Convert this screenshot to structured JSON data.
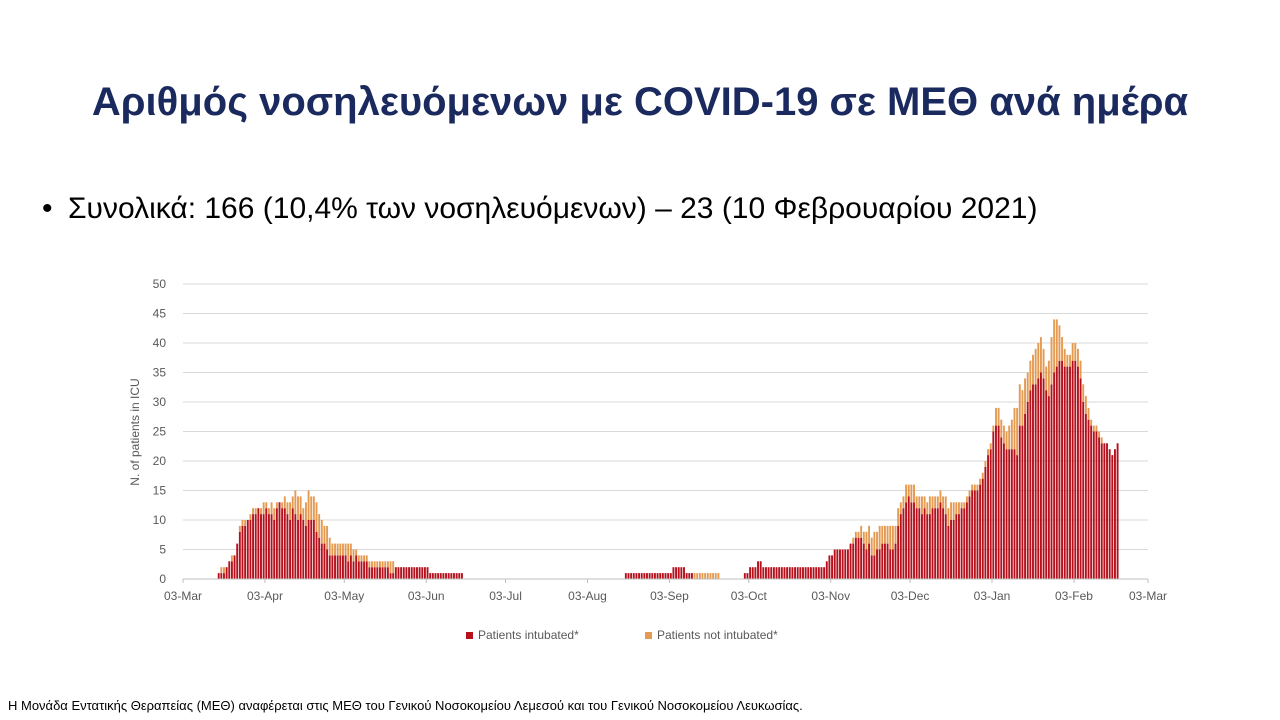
{
  "slide": {
    "title": "Αριθμός νοσηλευόμενων με COVID-19 σε ΜΕΘ ανά ημέρα",
    "bullet": "Συνολικά: 166 (10,4% των νοσηλευόμενων) – 23 (10 Φεβρουαρίου 2021)",
    "footnote": "Η Μονάδα Εντατικής Θεραπείας (ΜΕΘ) αναφέρεται στις ΜΕΘ του Γενικού Νοσοκομείου  Λεμεσού και του Γενικού Νοσοκομείου  Λευκωσίας."
  },
  "chart_data": {
    "type": "bar",
    "stacked": true,
    "title": "",
    "xlabel": "",
    "ylabel": "N. of patients in ICU",
    "ylim": [
      0,
      50
    ],
    "yticks": [
      0,
      5,
      10,
      15,
      20,
      25,
      30,
      35,
      40,
      45,
      50
    ],
    "grid": true,
    "legend_position": "bottom",
    "x_range": [
      "2020-03-03",
      "2021-03-03"
    ],
    "x_tick_labels": [
      "03-Mar",
      "03-Apr",
      "03-May",
      "03-Jun",
      "03-Jul",
      "03-Aug",
      "03-Sep",
      "03-Oct",
      "03-Nov",
      "03-Dec",
      "03-Jan",
      "03-Feb",
      "03-Mar"
    ],
    "x_tick_dates": [
      "2020-03-03",
      "2020-04-03",
      "2020-05-03",
      "2020-06-03",
      "2020-07-03",
      "2020-08-03",
      "2020-09-03",
      "2020-10-03",
      "2020-11-03",
      "2020-12-03",
      "2021-01-03",
      "2021-02-03",
      "2021-03-03"
    ],
    "series_colors": [
      "#b5101c",
      "#e59a52"
    ],
    "series": [
      {
        "name": "Patients intubated*",
        "segments": [
          {
            "start": "2020-03-16",
            "values": [
              1,
              1,
              1,
              2,
              3,
              3,
              4,
              6,
              8,
              9,
              9,
              10,
              10,
              11,
              11,
              12,
              11,
              11,
              12,
              11,
              11,
              10,
              12,
              13,
              12,
              12,
              11,
              10,
              12,
              11,
              10,
              11,
              10,
              9,
              10,
              10,
              10,
              8,
              7,
              6,
              6,
              5,
              4,
              4,
              4,
              4,
              4,
              4,
              4,
              3,
              4,
              3,
              4,
              3,
              3,
              3,
              3,
              2,
              2,
              2,
              2,
              2,
              2,
              2,
              2,
              1,
              1,
              2,
              2,
              2,
              2,
              2,
              2,
              2,
              2,
              2,
              2,
              2,
              2,
              2,
              1,
              1,
              1,
              1,
              1,
              1,
              1,
              1,
              1,
              1,
              1,
              1,
              1
            ]
          },
          {
            "start": "2020-08-17",
            "values": [
              1,
              1,
              1,
              1,
              1,
              1,
              1,
              1,
              1,
              1,
              1,
              1,
              1,
              1,
              1,
              1,
              1,
              1,
              2,
              2,
              2,
              2,
              2,
              1,
              1,
              1,
              0,
              0,
              0,
              0,
              0,
              0,
              0,
              0,
              0,
              0,
              0,
              0,
              0,
              0,
              0,
              0,
              0,
              0,
              0,
              1,
              1,
              2,
              2,
              2,
              3,
              3,
              2,
              2,
              2,
              2,
              2,
              2,
              2,
              2,
              2,
              2,
              2,
              2,
              2,
              2,
              2,
              2,
              2,
              2,
              2,
              2,
              2,
              2,
              2,
              2,
              3,
              4,
              4,
              5,
              5,
              5,
              5,
              5,
              5,
              6,
              6,
              7,
              7,
              7,
              6,
              5,
              6,
              4,
              4,
              5,
              5,
              6,
              6,
              6,
              5,
              5,
              6,
              9,
              11,
              12,
              13,
              14,
              13,
              13,
              12,
              12,
              11,
              12,
              11,
              11,
              12,
              12,
              12,
              13,
              12,
              11,
              9,
              10,
              10,
              11,
              11,
              12,
              12,
              13,
              14,
              15,
              15,
              15,
              16,
              17,
              19,
              21,
              22,
              25,
              26,
              26,
              24,
              23,
              22,
              22,
              22,
              22,
              21,
              26,
              26,
              28,
              30,
              32,
              33,
              33,
              34,
              35,
              34,
              32,
              31,
              33,
              35,
              36,
              37,
              37,
              36,
              36,
              36,
              37,
              37,
              36,
              34,
              30,
              28,
              27,
              26,
              25,
              25,
              24,
              23,
              23,
              23,
              22,
              21,
              22,
              23
            ]
          }
        ]
      },
      {
        "name": "Patients not intubated*",
        "segments": [
          {
            "start": "2020-03-16",
            "values": [
              0,
              1,
              1,
              0,
              0,
              1,
              0,
              0,
              1,
              1,
              1,
              0,
              1,
              1,
              1,
              0,
              1,
              2,
              1,
              1,
              2,
              2,
              1,
              0,
              1,
              2,
              2,
              3,
              2,
              4,
              4,
              3,
              2,
              4,
              5,
              4,
              4,
              5,
              4,
              4,
              3,
              4,
              3,
              2,
              2,
              2,
              2,
              2,
              2,
              3,
              2,
              2,
              1,
              1,
              1,
              1,
              1,
              1,
              1,
              1,
              1,
              1,
              1,
              1,
              1,
              2,
              2,
              0,
              0,
              0,
              0,
              0,
              0,
              0,
              0,
              0,
              0,
              0,
              0,
              0,
              0,
              0,
              0,
              0,
              0,
              0,
              0,
              0,
              0,
              0,
              0,
              0,
              0
            ]
          },
          {
            "start": "2020-08-17",
            "values": [
              0,
              0,
              0,
              0,
              0,
              0,
              0,
              0,
              0,
              0,
              0,
              0,
              0,
              0,
              0,
              0,
              0,
              0,
              0,
              0,
              0,
              0,
              0,
              0,
              0,
              0,
              1,
              1,
              1,
              1,
              1,
              1,
              1,
              1,
              1,
              1,
              0,
              0,
              0,
              0,
              0,
              0,
              0,
              0,
              0,
              0,
              0,
              0,
              0,
              0,
              0,
              0,
              0,
              0,
              0,
              0,
              0,
              0,
              0,
              0,
              0,
              0,
              0,
              0,
              0,
              0,
              0,
              0,
              0,
              0,
              0,
              0,
              0,
              0,
              0,
              0,
              0,
              0,
              0,
              0,
              0,
              0,
              0,
              0,
              0,
              0,
              1,
              1,
              1,
              2,
              2,
              3,
              3,
              3,
              4,
              3,
              4,
              3,
              3,
              3,
              4,
              4,
              3,
              3,
              2,
              2,
              3,
              2,
              3,
              3,
              2,
              2,
              3,
              2,
              2,
              3,
              2,
              2,
              2,
              2,
              2,
              3,
              3,
              3,
              3,
              2,
              2,
              1,
              1,
              1,
              1,
              1,
              1,
              1,
              1,
              1,
              1,
              1,
              1,
              1,
              3,
              3,
              3,
              3,
              3,
              4,
              5,
              7,
              8,
              7,
              6,
              6,
              5,
              5,
              5,
              6,
              6,
              6,
              5,
              4,
              6,
              8,
              9,
              8,
              6,
              4,
              3,
              2,
              2,
              3,
              3,
              3,
              3,
              3,
              3,
              2,
              1,
              1,
              1,
              1,
              1,
              0,
              0,
              0,
              0,
              0,
              0
            ]
          }
        ]
      }
    ]
  }
}
